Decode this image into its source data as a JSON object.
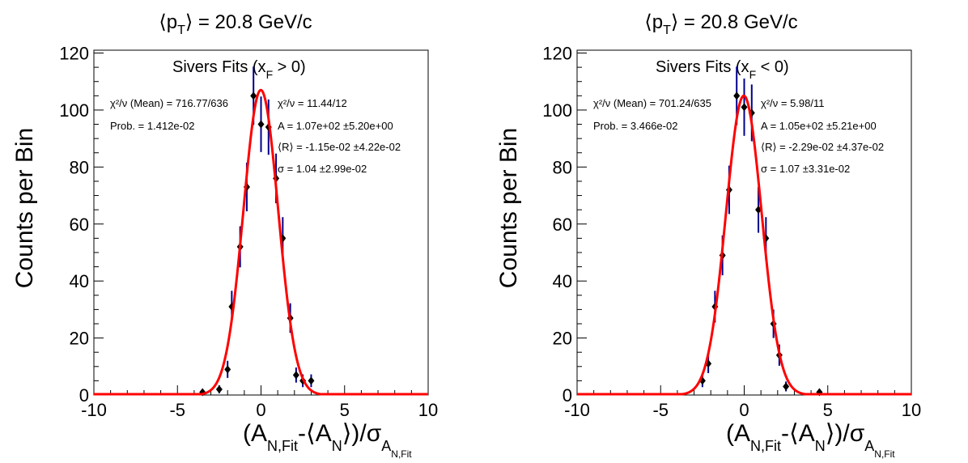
{
  "chart_data": [
    {
      "type": "scatter",
      "title_main": "⟨p",
      "title_sub": "T",
      "title_rest": "⟩ = 20.8 GeV/c",
      "ylabel": "Counts per Bin",
      "xlabel_parts": [
        "(A",
        "N,Fit",
        "-⟨A",
        "N",
        "⟩)/σ",
        "A",
        "N,Fit"
      ],
      "xlim": [
        -10,
        10
      ],
      "ylim": [
        0,
        121
      ],
      "xticks": [
        -10,
        -5,
        0,
        5,
        10
      ],
      "yticks": [
        0,
        20,
        40,
        60,
        80,
        100,
        120
      ],
      "legend_title": [
        "Sivers Fits (x",
        "F",
        " > 0)"
      ],
      "stats": {
        "chi2_mean": "χ²/ν (Mean) = 716.77/636",
        "prob": "Prob. = 1.412e-02",
        "chi2_fit": "χ²/ν = 11.44/12",
        "amp": "A = 1.07e+02  ±5.20e+00",
        "mean": "⟨R⟩ = -1.15e-02 ±4.22e-02",
        "sigma": "σ = 1.04 ±2.99e-02"
      },
      "fit": {
        "A": 107,
        "mean": -0.0115,
        "sigma": 1.04,
        "color": "#ff0000"
      },
      "marker_color": "#000000",
      "errorbar_color": "#00008b",
      "points": [
        {
          "x": -3.5,
          "y": 1
        },
        {
          "x": -2.5,
          "y": 2
        },
        {
          "x": -2.0,
          "y": 9
        },
        {
          "x": -1.75,
          "y": 31
        },
        {
          "x": -1.25,
          "y": 52
        },
        {
          "x": -0.85,
          "y": 73
        },
        {
          "x": -0.45,
          "y": 105
        },
        {
          "x": 0.0,
          "y": 95
        },
        {
          "x": 0.45,
          "y": 94
        },
        {
          "x": 0.9,
          "y": 76
        },
        {
          "x": 1.3,
          "y": 55
        },
        {
          "x": 1.75,
          "y": 27
        },
        {
          "x": 2.1,
          "y": 7
        },
        {
          "x": 2.5,
          "y": 5
        },
        {
          "x": 3.0,
          "y": 5
        }
      ]
    },
    {
      "type": "scatter",
      "title_main": "⟨p",
      "title_sub": "T",
      "title_rest": "⟩ = 20.8 GeV/c",
      "ylabel": "Counts per Bin",
      "xlabel_parts": [
        "(A",
        "N,Fit",
        "-⟨A",
        "N",
        "⟩)/σ",
        "A",
        "N,Fit"
      ],
      "xlim": [
        -10,
        10
      ],
      "ylim": [
        0,
        121
      ],
      "xticks": [
        -10,
        -5,
        0,
        5,
        10
      ],
      "yticks": [
        0,
        20,
        40,
        60,
        80,
        100,
        120
      ],
      "legend_title": [
        "Sivers Fits (x",
        "F",
        " < 0)"
      ],
      "stats": {
        "chi2_mean": "χ²/ν (Mean) = 701.24/635",
        "prob": "Prob. = 3.466e-02",
        "chi2_fit": "χ²/ν = 5.98/11",
        "amp": "A = 1.05e+02  ±5.21e+00",
        "mean": "⟨R⟩ = -2.29e-02 ±4.37e-02",
        "sigma": "σ = 1.07 ±3.31e-02"
      },
      "fit": {
        "A": 105,
        "mean": -0.0229,
        "sigma": 1.07,
        "color": "#ff0000"
      },
      "marker_color": "#000000",
      "errorbar_color": "#00008b",
      "points": [
        {
          "x": -2.5,
          "y": 5
        },
        {
          "x": -2.15,
          "y": 11
        },
        {
          "x": -1.75,
          "y": 31
        },
        {
          "x": -1.3,
          "y": 49
        },
        {
          "x": -0.9,
          "y": 72
        },
        {
          "x": -0.45,
          "y": 105
        },
        {
          "x": 0.0,
          "y": 101
        },
        {
          "x": 0.45,
          "y": 99
        },
        {
          "x": 0.85,
          "y": 65
        },
        {
          "x": 1.3,
          "y": 55
        },
        {
          "x": 1.75,
          "y": 25
        },
        {
          "x": 2.1,
          "y": 14
        },
        {
          "x": 2.5,
          "y": 3
        },
        {
          "x": 4.5,
          "y": 1
        }
      ]
    }
  ]
}
